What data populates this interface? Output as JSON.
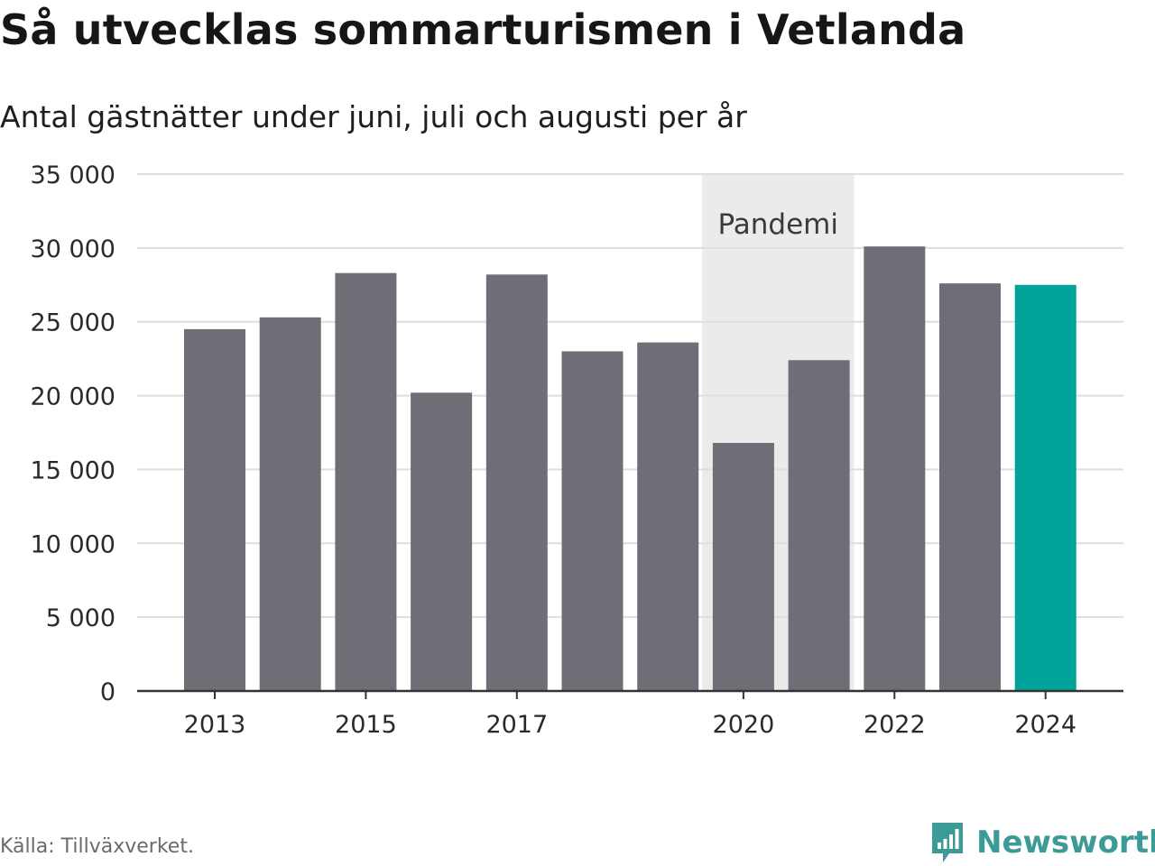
{
  "header": {
    "title": "Så utvecklas sommarturismen i Vetlanda",
    "subtitle": "Antal gästnätter under juni, juli och augusti per år"
  },
  "footer": {
    "source": "Källa: Tillväxverket.",
    "brand": "Newsworthy",
    "brand_icon": "newsworthy-logo-icon"
  },
  "colors": {
    "bar": "#6e6e76",
    "highlight": "#00a39a",
    "pandemic_band": "#ebebeb",
    "grid": "#dedede",
    "axis": "#333333",
    "brand": "#3c9a97"
  },
  "chart_data": {
    "type": "bar",
    "categories": [
      "2013",
      "2014",
      "2015",
      "2016",
      "2017",
      "2018",
      "2019",
      "2020",
      "2021",
      "2022",
      "2023",
      "2024"
    ],
    "values": [
      24500,
      25300,
      28300,
      20200,
      28200,
      23000,
      23600,
      16800,
      22400,
      30100,
      27600,
      27500
    ],
    "highlight_category": "2024",
    "x_tick_labels": [
      "2013",
      "2015",
      "2017",
      "2020",
      "2022",
      "2024"
    ],
    "y_ticks": [
      0,
      5000,
      10000,
      15000,
      20000,
      25000,
      30000,
      35000
    ],
    "y_tick_labels": [
      "0",
      "5 000",
      "10 000",
      "15 000",
      "20 000",
      "25 000",
      "30 000",
      "35 000"
    ],
    "ylim": [
      0,
      35000
    ],
    "grid": true,
    "annotation": {
      "label": "Pandemi",
      "from": "2020",
      "to": "2021"
    }
  }
}
